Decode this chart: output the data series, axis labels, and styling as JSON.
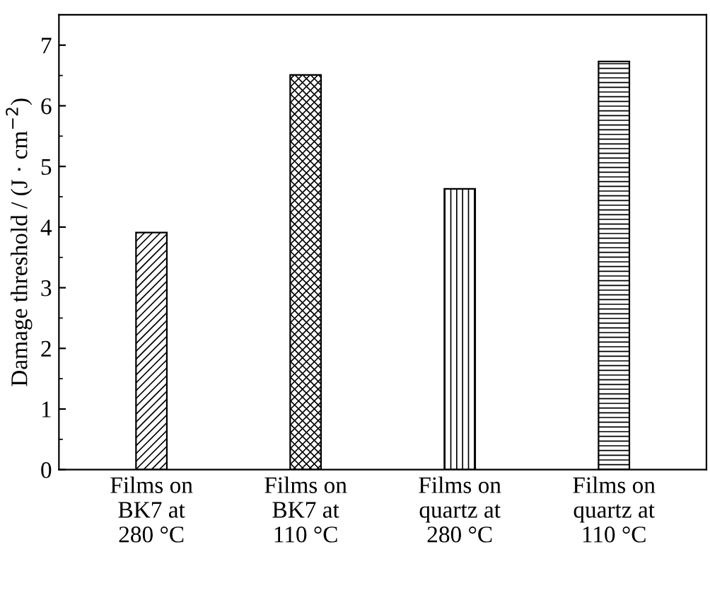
{
  "chart_data": {
    "type": "bar",
    "categories": [
      "Films on\nBK7 at\n280 °C",
      "Films on\nBK7 at\n110 °C",
      "Films on\nquartz at\n280 °C",
      "Films on\nquartz at\n110 °C"
    ],
    "values": [
      3.91,
      6.51,
      4.63,
      6.73
    ],
    "color": "#000000",
    "ylabel": "Damage threshold / (J · cm$^{−2}$)",
    "ylim": [
      0,
      7.5
    ],
    "yticks": [
      0,
      1,
      2,
      3,
      4,
      5,
      6,
      7
    ],
    "grid": false,
    "legend": false
  }
}
